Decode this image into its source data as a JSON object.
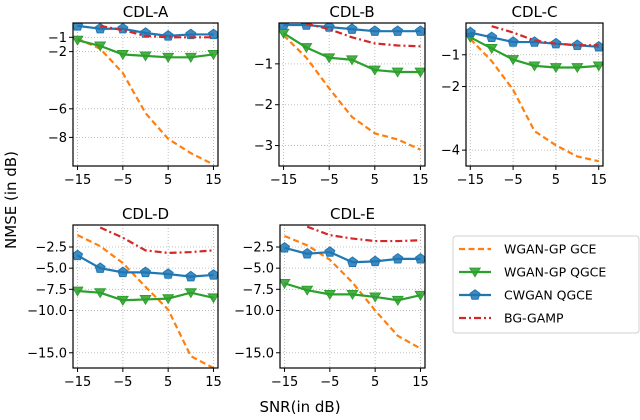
{
  "figure": {
    "xlabel": "SNR(in dB)",
    "ylabel": "NMSE (in dB)"
  },
  "legend": {
    "placement": "right-middle",
    "entries": [
      {
        "key": "gce",
        "label": "WGAN-GP GCE",
        "color": "#ff7f0e",
        "style": "dashed",
        "marker": "none"
      },
      {
        "key": "qgce",
        "label": "WGAN-GP QGCE",
        "color": "#2ca02c",
        "style": "solid",
        "marker": "triangle-down"
      },
      {
        "key": "cwgan",
        "label": "CWGAN QGCE",
        "color": "#1f77b4",
        "style": "solid",
        "marker": "pentagon"
      },
      {
        "key": "bggamp",
        "label": "BG-GAMP",
        "color": "#d62728",
        "style": "dashdot",
        "marker": "none"
      }
    ]
  },
  "chart_data": [
    {
      "type": "line",
      "title": "CDL-A",
      "xlabel": "",
      "ylabel": "",
      "x": [
        -15,
        -10,
        -5,
        0,
        5,
        10,
        15
      ],
      "xticks": [
        -15,
        -5,
        5,
        15
      ],
      "xlim": [
        -16,
        16
      ],
      "yticks": [
        -1,
        -2,
        -6,
        -8
      ],
      "ytick_labels": [
        "−1",
        "−2",
        "−6",
        "−8"
      ],
      "ylim": [
        -10,
        0
      ],
      "grid": true,
      "series": [
        {
          "key": "gce",
          "name": "WGAN-GP GCE",
          "values": [
            -1.1,
            -1.8,
            -3.5,
            -6.3,
            -8.1,
            -9.1,
            -9.9
          ]
        },
        {
          "key": "qgce",
          "name": "WGAN-GP QGCE",
          "values": [
            -1.2,
            -1.6,
            -2.2,
            -2.3,
            -2.4,
            -2.4,
            -2.2
          ]
        },
        {
          "key": "cwgan",
          "name": "CWGAN QGCE",
          "values": [
            -0.2,
            -0.4,
            -0.4,
            -0.7,
            -0.9,
            -0.8,
            -0.8
          ]
        },
        {
          "key": "bggamp",
          "name": "BG-GAMP",
          "values": [
            null,
            -0.2,
            -0.5,
            -0.9,
            -1.0,
            -1.0,
            -1.0
          ]
        }
      ]
    },
    {
      "type": "line",
      "title": "CDL-B",
      "xlabel": "",
      "ylabel": "",
      "x": [
        -15,
        -10,
        -5,
        0,
        5,
        10,
        15
      ],
      "xticks": [
        -15,
        -5,
        5,
        15
      ],
      "xlim": [
        -16,
        16
      ],
      "yticks": [
        -1,
        -2,
        -3
      ],
      "ytick_labels": [
        "−1",
        "−2",
        "−3"
      ],
      "ylim": [
        -3.5,
        0
      ],
      "grid": true,
      "series": [
        {
          "key": "gce",
          "name": "WGAN-GP GCE",
          "values": [
            -0.3,
            -0.85,
            -1.6,
            -2.3,
            -2.7,
            -2.85,
            -3.1
          ]
        },
        {
          "key": "qgce",
          "name": "WGAN-GP QGCE",
          "values": [
            -0.25,
            -0.6,
            -0.85,
            -0.9,
            -1.15,
            -1.2,
            -1.2
          ]
        },
        {
          "key": "cwgan",
          "name": "CWGAN QGCE",
          "values": [
            -0.05,
            -0.05,
            -0.1,
            -0.15,
            -0.2,
            -0.2,
            -0.2
          ]
        },
        {
          "key": "bggamp",
          "name": "BG-GAMP",
          "values": [
            null,
            -0.02,
            -0.15,
            -0.35,
            -0.5,
            -0.55,
            -0.57
          ]
        }
      ]
    },
    {
      "type": "line",
      "title": "CDL-C",
      "xlabel": "",
      "ylabel": "",
      "x": [
        -15,
        -10,
        -5,
        0,
        5,
        10,
        15
      ],
      "xticks": [
        -15,
        -5,
        5,
        15
      ],
      "xlim": [
        -16,
        16
      ],
      "yticks": [
        -1,
        -2,
        -4
      ],
      "ytick_labels": [
        "−1",
        "−2",
        "−4"
      ],
      "ylim": [
        -4.5,
        0
      ],
      "grid": true,
      "series": [
        {
          "key": "gce",
          "name": "WGAN-GP GCE",
          "values": [
            -0.5,
            -1.2,
            -2.1,
            -3.4,
            -3.85,
            -4.2,
            -4.35
          ]
        },
        {
          "key": "qgce",
          "name": "WGAN-GP QGCE",
          "values": [
            -0.45,
            -0.8,
            -1.15,
            -1.35,
            -1.4,
            -1.4,
            -1.35
          ]
        },
        {
          "key": "cwgan",
          "name": "CWGAN QGCE",
          "values": [
            -0.3,
            -0.45,
            -0.6,
            -0.6,
            -0.65,
            -0.7,
            -0.75
          ]
        },
        {
          "key": "bggamp",
          "name": "BG-GAMP",
          "values": [
            null,
            -0.1,
            -0.3,
            -0.55,
            -0.65,
            -0.7,
            -0.7
          ]
        }
      ]
    },
    {
      "type": "line",
      "title": "CDL-D",
      "xlabel": "",
      "ylabel": "",
      "x": [
        -15,
        -10,
        -5,
        0,
        5,
        10,
        15
      ],
      "xticks": [
        -15,
        -5,
        5,
        15
      ],
      "xlim": [
        -16,
        16
      ],
      "yticks": [
        -2.5,
        -5.0,
        -7.5,
        -10.0,
        -15.0
      ],
      "ytick_labels": [
        "−2.5",
        "−5.0",
        "−7.5",
        "−10.0",
        "−15.0"
      ],
      "ylim": [
        -16.8,
        0.1
      ],
      "grid": true,
      "series": [
        {
          "key": "gce",
          "name": "WGAN-GP GCE",
          "values": [
            -1.1,
            -2.4,
            -4.4,
            -7.2,
            -9.9,
            -15.4,
            -16.8
          ]
        },
        {
          "key": "qgce",
          "name": "WGAN-GP QGCE",
          "values": [
            -7.7,
            -7.9,
            -8.8,
            -8.7,
            -8.6,
            -7.9,
            -8.5
          ]
        },
        {
          "key": "cwgan",
          "name": "CWGAN QGCE",
          "values": [
            -3.5,
            -5.0,
            -5.5,
            -5.5,
            -5.7,
            -6.0,
            -5.8
          ]
        },
        {
          "key": "bggamp",
          "name": "BG-GAMP",
          "values": [
            null,
            -0.2,
            -1.4,
            -2.9,
            -3.2,
            -3.1,
            -2.9
          ]
        }
      ]
    },
    {
      "type": "line",
      "title": "CDL-E",
      "xlabel": "SNR(in dB)",
      "ylabel": "",
      "x": [
        -15,
        -10,
        -5,
        0,
        5,
        10,
        15
      ],
      "xticks": [
        -15,
        -5,
        5,
        15
      ],
      "xlim": [
        -16,
        16
      ],
      "yticks": [
        -2.5,
        -5.0,
        -7.5,
        -10.0,
        -15.0
      ],
      "ytick_labels": [
        "−2.5",
        "−5.0",
        "−7.5",
        "−10.0",
        "−15.0"
      ],
      "ylim": [
        -16.8,
        0.1
      ],
      "grid": true,
      "series": [
        {
          "key": "gce",
          "name": "WGAN-GP GCE",
          "values": [
            -1.2,
            -2.3,
            -4.0,
            -6.7,
            -10.0,
            -13.0,
            -14.5
          ]
        },
        {
          "key": "qgce",
          "name": "WGAN-GP QGCE",
          "values": [
            -6.8,
            -7.6,
            -8.1,
            -8.1,
            -8.4,
            -8.8,
            -8.2
          ]
        },
        {
          "key": "cwgan",
          "name": "CWGAN QGCE",
          "values": [
            -2.6,
            -3.3,
            -3.1,
            -4.3,
            -4.2,
            -3.9,
            -3.9
          ]
        },
        {
          "key": "bggamp",
          "name": "BG-GAMP",
          "values": [
            null,
            -0.1,
            -1.1,
            -1.5,
            -1.8,
            -1.8,
            -1.7
          ]
        }
      ]
    }
  ]
}
